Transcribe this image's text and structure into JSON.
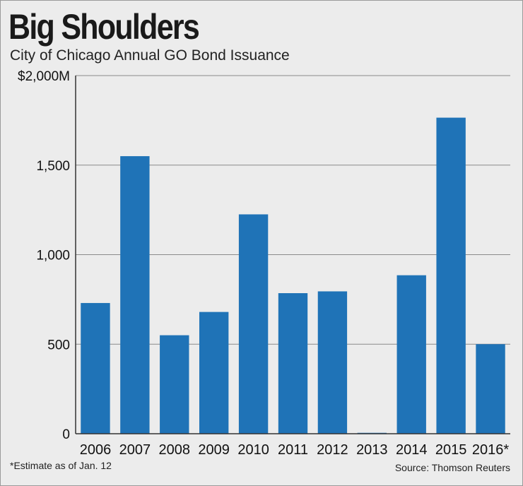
{
  "chart_data": {
    "type": "bar",
    "title": "Big Shoulders",
    "subtitle": "City of Chicago Annual GO Bond Issuance",
    "categories": [
      "2006",
      "2007",
      "2008",
      "2009",
      "2010",
      "2011",
      "2012",
      "2013",
      "2014",
      "2015",
      "2016*"
    ],
    "values": [
      730,
      1550,
      550,
      680,
      1225,
      785,
      795,
      5,
      885,
      1765,
      500
    ],
    "ylim": [
      0,
      2000
    ],
    "yticks": [
      0,
      500,
      1000,
      1500,
      2000
    ],
    "ytick_labels": [
      "0",
      "500",
      "1,000",
      "1,500",
      "$2,000M"
    ],
    "bar_color": "#1f73b7",
    "grid": true,
    "footnote": "*Estimate as of Jan. 12",
    "source": "Source: Thomson Reuters"
  }
}
